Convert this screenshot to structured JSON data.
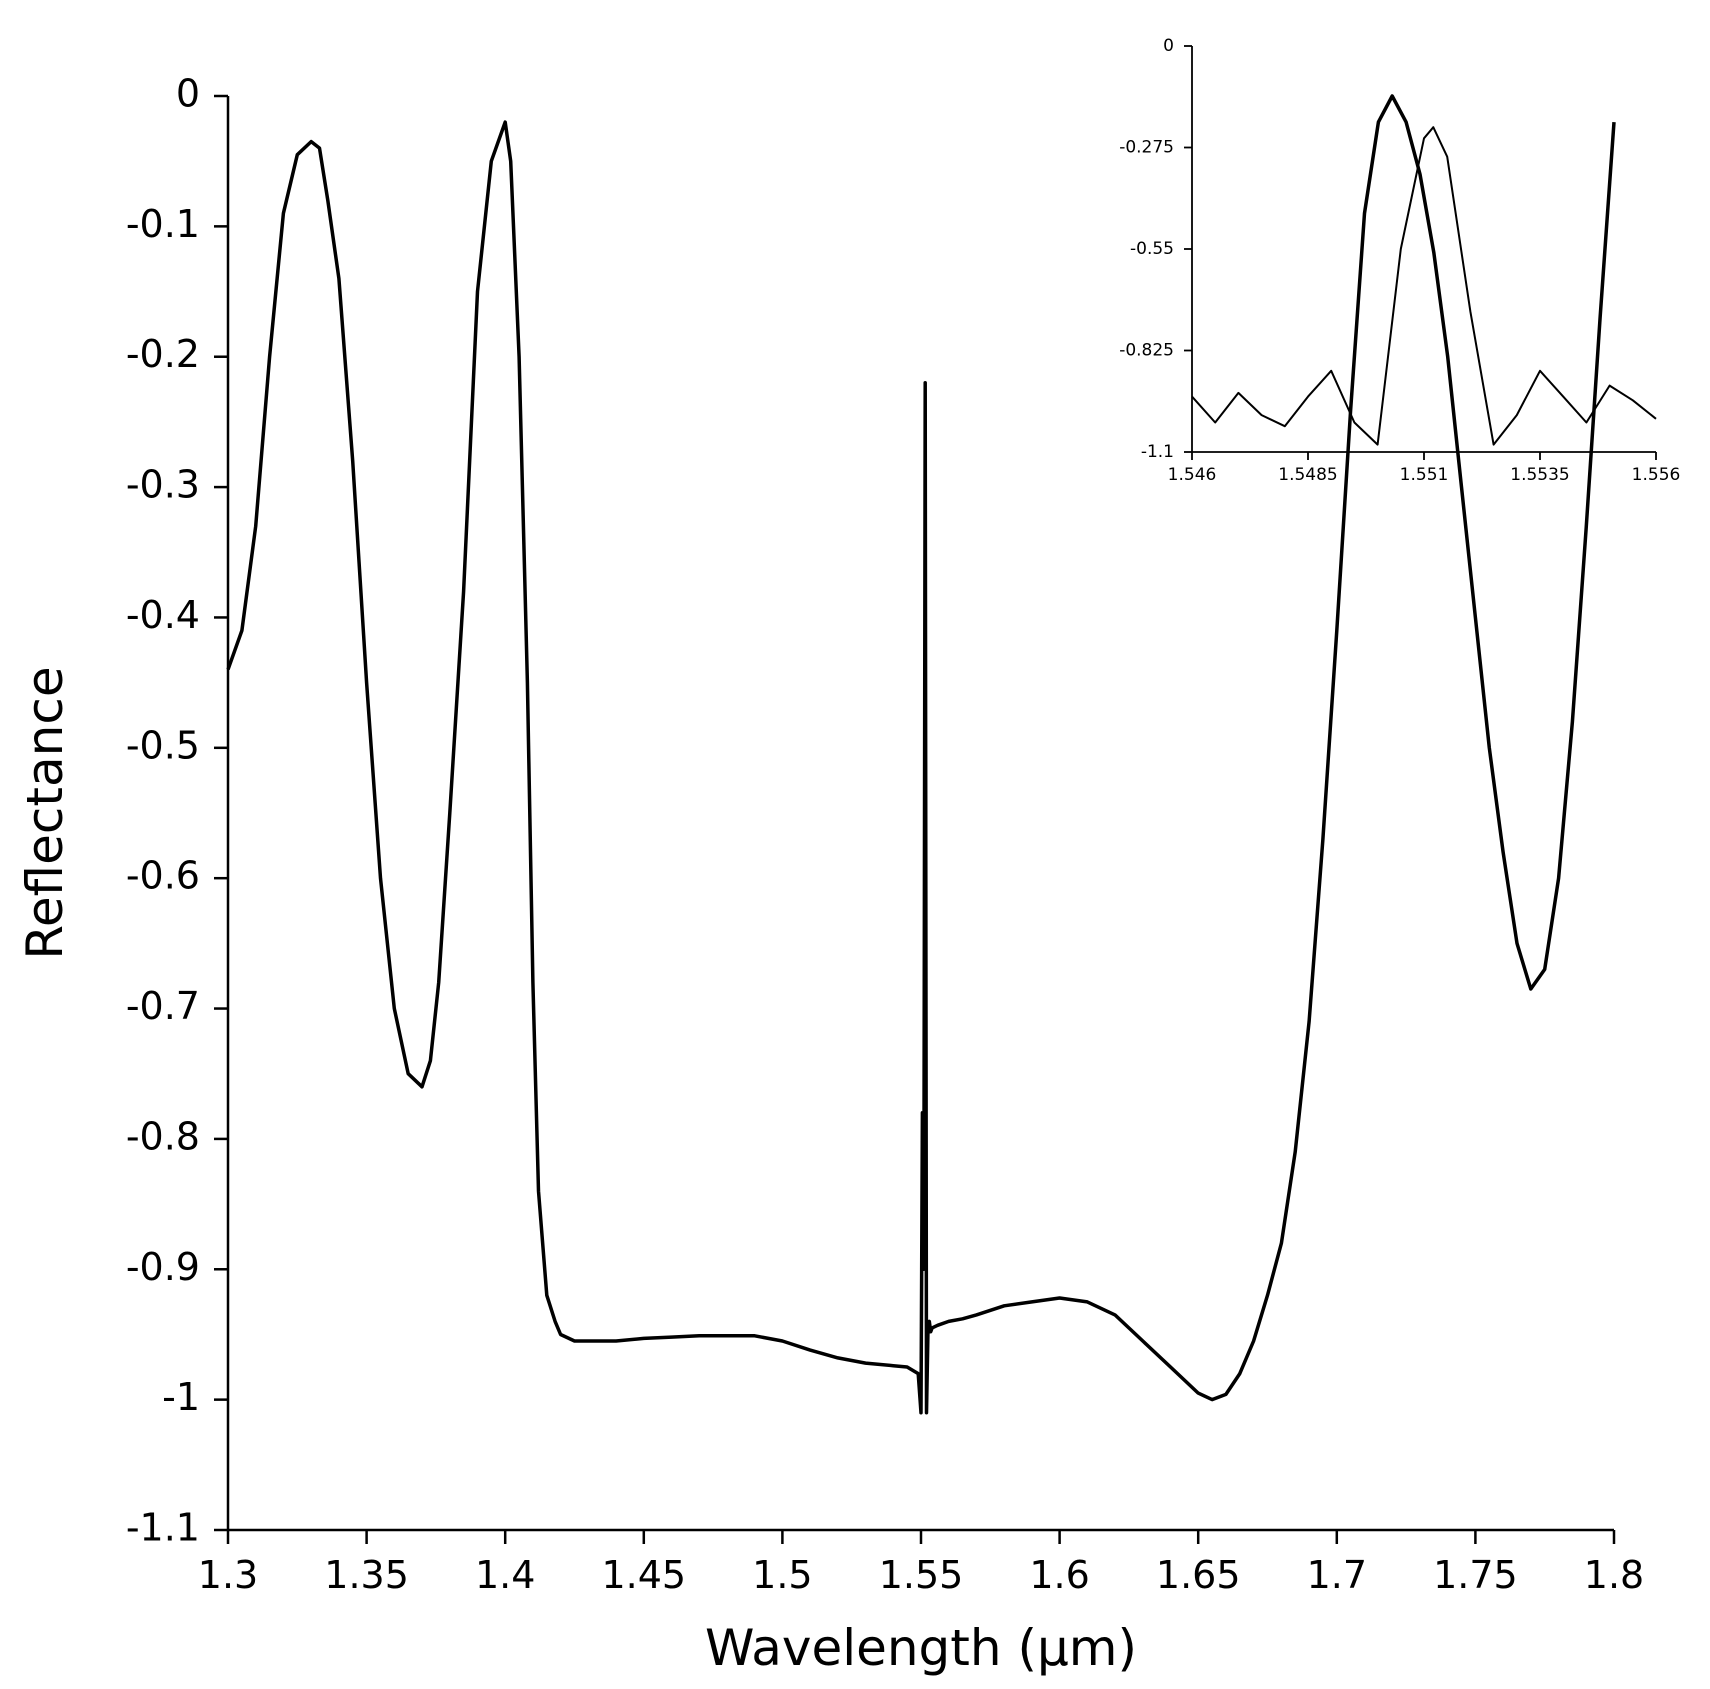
{
  "chart_data": [
    {
      "type": "line",
      "title": "",
      "xlabel": "Wavelength (µm)",
      "ylabel": "Reflectance",
      "xlim": [
        1.3,
        1.8
      ],
      "ylim": [
        -1.1,
        0
      ],
      "xticks": [
        "1.3",
        "1.35",
        "1.4",
        "1.45",
        "1.5",
        "1.55",
        "1.6",
        "1.65",
        "1.7",
        "1.75",
        "1.8"
      ],
      "yticks": [
        "0",
        "-0.1",
        "-0.2",
        "-0.3",
        "-0.4",
        "-0.5",
        "-0.6",
        "-0.7",
        "-0.8",
        "-0.9",
        "-1",
        "-1.1"
      ],
      "grid": false,
      "series": [
        {
          "x": [
            1.3,
            1.305,
            1.31,
            1.315,
            1.32,
            1.325,
            1.33,
            1.333,
            1.336,
            1.34,
            1.345,
            1.35,
            1.355,
            1.36,
            1.365,
            1.37,
            1.373,
            1.376,
            1.38,
            1.385,
            1.39,
            1.395,
            1.4,
            1.402,
            1.405,
            1.408,
            1.41,
            1.412,
            1.415,
            1.418,
            1.42,
            1.425,
            1.43,
            1.44,
            1.45,
            1.46,
            1.47,
            1.48,
            1.49,
            1.5,
            1.51,
            1.52,
            1.53,
            1.54,
            1.545,
            1.549,
            1.55,
            1.5505,
            1.551,
            1.5515,
            1.552,
            1.5525,
            1.553,
            1.5535,
            1.554,
            1.556,
            1.56,
            1.565,
            1.57,
            1.58,
            1.59,
            1.6,
            1.61,
            1.62,
            1.63,
            1.64,
            1.65,
            1.655,
            1.66,
            1.665,
            1.67,
            1.675,
            1.68,
            1.685,
            1.69,
            1.695,
            1.7,
            1.705,
            1.71,
            1.715,
            1.72,
            1.725,
            1.73,
            1.735,
            1.74,
            1.745,
            1.75,
            1.755,
            1.76,
            1.765,
            1.77,
            1.775,
            1.78,
            1.785,
            1.79,
            1.795,
            1.8
          ],
          "y": [
            -0.44,
            -0.41,
            -0.33,
            -0.2,
            -0.09,
            -0.045,
            -0.035,
            -0.04,
            -0.08,
            -0.14,
            -0.28,
            -0.45,
            -0.6,
            -0.7,
            -0.75,
            -0.76,
            -0.74,
            -0.68,
            -0.55,
            -0.38,
            -0.15,
            -0.05,
            -0.02,
            -0.05,
            -0.2,
            -0.45,
            -0.68,
            -0.84,
            -0.92,
            -0.94,
            -0.95,
            -0.955,
            -0.955,
            -0.955,
            -0.953,
            -0.952,
            -0.951,
            -0.951,
            -0.951,
            -0.955,
            -0.962,
            -0.968,
            -0.972,
            -0.974,
            -0.975,
            -0.98,
            -1.01,
            -0.78,
            -0.9,
            -0.22,
            -1.01,
            -0.95,
            -0.94,
            -0.948,
            -0.945,
            -0.943,
            -0.94,
            -0.938,
            -0.935,
            -0.928,
            -0.925,
            -0.922,
            -0.925,
            -0.935,
            -0.955,
            -0.975,
            -0.995,
            -1.0,
            -0.996,
            -0.98,
            -0.955,
            -0.92,
            -0.88,
            -0.81,
            -0.71,
            -0.57,
            -0.41,
            -0.24,
            -0.09,
            -0.02,
            0.0,
            -0.02,
            -0.06,
            -0.12,
            -0.2,
            -0.3,
            -0.4,
            -0.5,
            -0.58,
            -0.65,
            -0.685,
            -0.67,
            -0.6,
            -0.48,
            -0.33,
            -0.17,
            -0.02
          ]
        }
      ]
    },
    {
      "type": "line",
      "title": "",
      "xlabel": "",
      "ylabel": "",
      "xlim": [
        1.546,
        1.556
      ],
      "ylim": [
        -1.1,
        0
      ],
      "xticks": [
        "1.546",
        "1.5485",
        "1.551",
        "1.5535",
        "1.556"
      ],
      "yticks": [
        "0",
        "-0.275",
        "-0.55",
        "-0.825",
        "-1.1"
      ],
      "grid": false,
      "series": [
        {
          "x": [
            1.546,
            1.5465,
            1.547,
            1.5475,
            1.548,
            1.5485,
            1.549,
            1.5495,
            1.55,
            1.5505,
            1.551,
            1.5512,
            1.5515,
            1.552,
            1.5525,
            1.553,
            1.5535,
            1.554,
            1.5545,
            1.555,
            1.5555,
            1.556
          ],
          "y": [
            -0.95,
            -1.02,
            -0.94,
            -1.0,
            -1.03,
            -0.95,
            -0.88,
            -1.02,
            -1.08,
            -0.55,
            -0.25,
            -0.22,
            -0.3,
            -0.72,
            -1.08,
            -1.0,
            -0.88,
            -0.95,
            -1.02,
            -0.92,
            -0.96,
            -1.01
          ]
        }
      ]
    }
  ]
}
